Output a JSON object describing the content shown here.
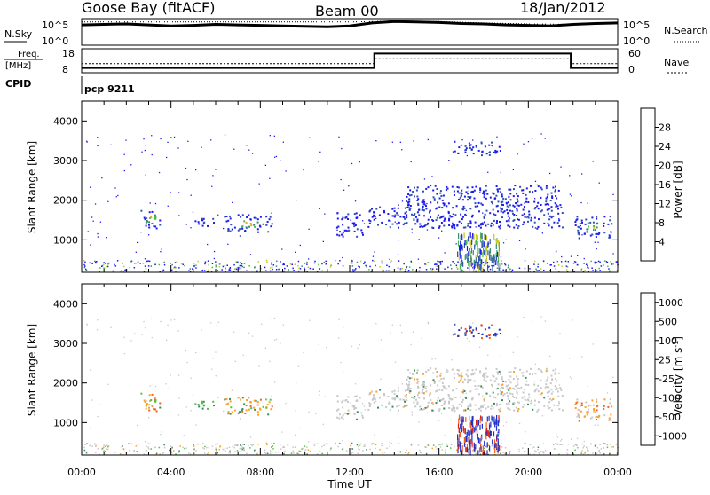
{
  "header": {
    "station": "Goose Bay (fitACF)",
    "beam": "Beam 00",
    "date": "18/Jan/2012"
  },
  "strip_noise": {
    "left_label": "N.Sky",
    "left_ticks": [
      "10^5",
      "10^0"
    ],
    "right_ticks": [
      "10^5",
      "10^0"
    ],
    "right_label": "N.Search",
    "series": [
      {
        "name": "N.Sky",
        "x": [
          0,
          1,
          2,
          3,
          4,
          5,
          6,
          7,
          8,
          9,
          10,
          11,
          12,
          13,
          14,
          15,
          16,
          17,
          18,
          19,
          20,
          21,
          22,
          23,
          24
        ],
        "y": [
          4.2,
          4.3,
          4.4,
          4.2,
          4.0,
          4.1,
          4.3,
          4.2,
          4.1,
          4.0,
          3.9,
          3.8,
          4.0,
          4.6,
          4.9,
          4.8,
          4.7,
          4.5,
          4.4,
          4.2,
          4.1,
          4.0,
          4.3,
          4.5,
          4.6
        ]
      },
      {
        "name": "N.Search",
        "x": [
          0,
          2,
          4,
          6,
          8,
          10,
          12,
          13,
          14,
          16,
          18,
          20,
          22,
          24
        ],
        "y": [
          4.8,
          4.8,
          4.8,
          4.8,
          4.8,
          4.8,
          4.8,
          4.9,
          5.0,
          4.9,
          4.6,
          4.4,
          4.3,
          4.4
        ]
      }
    ]
  },
  "strip_freq": {
    "left_label_1": "Freq.",
    "left_label_2": "[MHz]",
    "left_ticks": [
      "18",
      "8"
    ],
    "right_ticks": [
      "60",
      "0"
    ],
    "right_label": "Nave",
    "freq": {
      "x": [
        0,
        13.1,
        13.1,
        21.9,
        21.9,
        24
      ],
      "y": [
        10,
        10,
        16,
        16,
        10,
        10
      ]
    },
    "nave": {
      "x": [
        0,
        13.1,
        13.1,
        21.9,
        21.9,
        24
      ],
      "y": [
        23,
        23,
        35,
        35,
        23,
        23
      ]
    }
  },
  "cpid": {
    "label": "CPID",
    "value": "pcp 9211"
  },
  "chart_data": [
    {
      "type": "heatmap",
      "quantity": "Power",
      "ylabel": "Slant Range [km]",
      "ylim": [
        180,
        4500
      ],
      "xlim": [
        0,
        24
      ],
      "yticks": [
        "1000",
        "2000",
        "3000",
        "4000"
      ],
      "colorbar_label": "Power [dB]",
      "colorbar_ticks": [
        "4",
        "8",
        "12",
        "16",
        "20",
        "24",
        "28"
      ],
      "colors": [
        "#1c1cf0",
        "#2f55b0",
        "#3a8a70",
        "#44b84a",
        "#c8c820",
        "#f0a020",
        "#f07020",
        "#ff2a10"
      ],
      "blobs": [
        {
          "x": [
            2.6,
            3.5
          ],
          "y": [
            1300,
            1800
          ],
          "core": 0.9
        },
        {
          "x": [
            5.0,
            6.0
          ],
          "y": [
            1350,
            1600
          ],
          "core": 0.1
        },
        {
          "x": [
            6.3,
            8.5
          ],
          "y": [
            1200,
            1650
          ],
          "core": 0.7
        },
        {
          "x": [
            11.4,
            12.6
          ],
          "y": [
            1100,
            1700
          ],
          "core": 0.15
        },
        {
          "x": [
            12.8,
            21.5
          ],
          "y": [
            1300,
            1850
          ],
          "core": 0.05
        },
        {
          "x": [
            14.5,
            21.5
          ],
          "y": [
            1850,
            2400
          ],
          "core": 0.0
        },
        {
          "x": [
            16.6,
            18.8
          ],
          "y": [
            3150,
            3500
          ],
          "core": 0.05
        },
        {
          "x": [
            22.0,
            23.7
          ],
          "y": [
            1050,
            1650
          ],
          "core": 0.55
        }
      ]
    },
    {
      "type": "heatmap",
      "quantity": "Velocity",
      "ylabel": "Slant Range [km]",
      "ylim": [
        180,
        4500
      ],
      "xlim": [
        0,
        24
      ],
      "yticks": [
        "1000",
        "2000",
        "3000",
        "4000"
      ],
      "xticks": [
        "00:00",
        "04:00",
        "08:00",
        "12:00",
        "16:00",
        "20:00",
        "00:00"
      ],
      "xlabel": "Time UT",
      "colorbar_label": "Velocity [m s",
      "colorbar_unit_sup": "-1",
      "colorbar_unit_close": "]",
      "colorbar_ticks": [
        "1000",
        "500",
        "100",
        "25",
        "-25",
        "-100",
        "-500",
        "-1000"
      ],
      "colors": [
        "#2030c8",
        "#2f5fa8",
        "#3a8a5a",
        "#54c040",
        "#c8c8c8",
        "#ffa020",
        "#f06020",
        "#e02010"
      ],
      "blobs": [
        {
          "x": [
            2.6,
            3.5
          ],
          "y": [
            1300,
            1800
          ],
          "mix": "orange"
        },
        {
          "x": [
            5.0,
            6.0
          ],
          "y": [
            1350,
            1600
          ],
          "mix": "green"
        },
        {
          "x": [
            6.3,
            8.5
          ],
          "y": [
            1200,
            1650
          ],
          "mix": "orange"
        },
        {
          "x": [
            11.4,
            12.6
          ],
          "y": [
            1100,
            1700
          ],
          "mix": "gray"
        },
        {
          "x": [
            12.8,
            21.5
          ],
          "y": [
            1300,
            1850
          ],
          "mix": "gray"
        },
        {
          "x": [
            14.5,
            21.5
          ],
          "y": [
            1850,
            2400
          ],
          "mix": "gray"
        },
        {
          "x": [
            16.6,
            18.8
          ],
          "y": [
            3150,
            3500
          ],
          "mix": "blue"
        },
        {
          "x": [
            22.0,
            23.7
          ],
          "y": [
            1050,
            1650
          ],
          "mix": "orangegray"
        }
      ]
    }
  ]
}
